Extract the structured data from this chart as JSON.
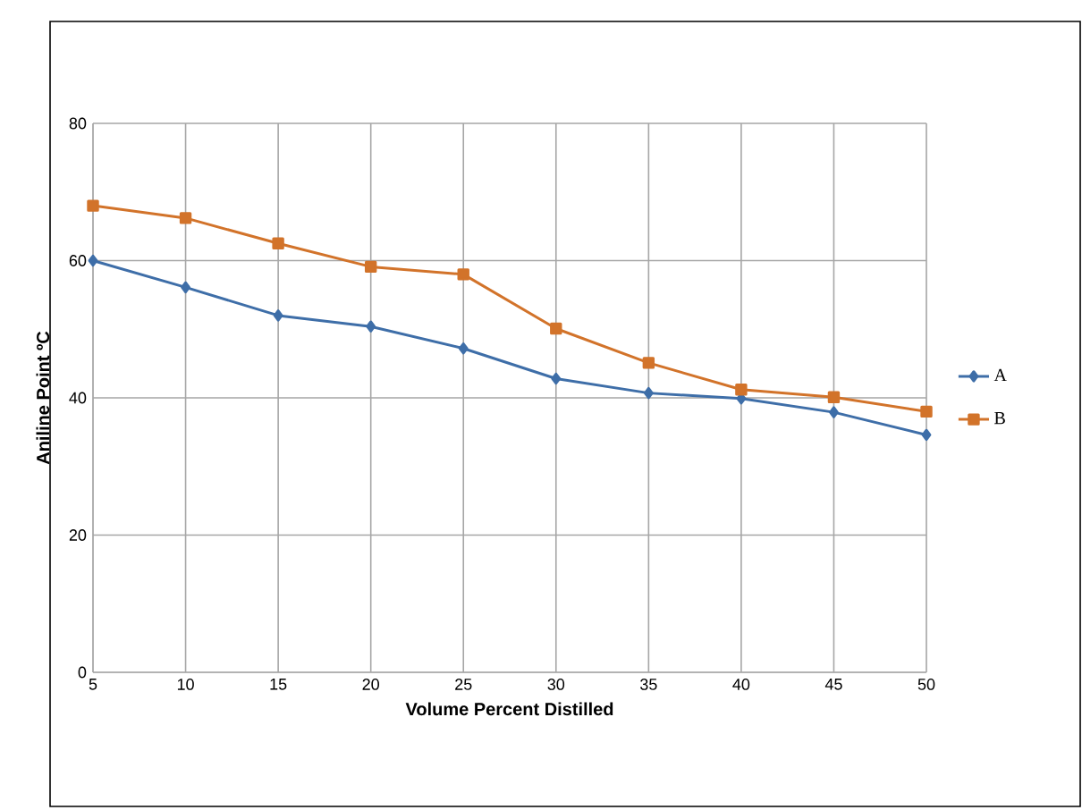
{
  "chart_data": {
    "type": "line",
    "xlabel": "Volume Percent Distilled",
    "ylabel": "Aniline Point  ºC",
    "categories": [
      "5",
      "10",
      "15",
      "20",
      "25",
      "30",
      "35",
      "40",
      "45",
      "50"
    ],
    "series": [
      {
        "name": "A",
        "color": "#3e6ea8",
        "marker": "diamond",
        "values": [
          60.0,
          56.1,
          52.0,
          50.4,
          47.2,
          42.8,
          40.7,
          39.9,
          37.9,
          34.6
        ]
      },
      {
        "name": "B",
        "color": "#d2732a",
        "marker": "square",
        "values": [
          68.0,
          66.2,
          62.5,
          59.1,
          58.0,
          50.1,
          45.1,
          41.2,
          40.1,
          38.0
        ]
      }
    ],
    "ylim": [
      0,
      80
    ],
    "yticks": [
      0,
      20,
      40,
      60,
      80
    ],
    "grid": true,
    "legend": "right",
    "line_style": "solid"
  }
}
